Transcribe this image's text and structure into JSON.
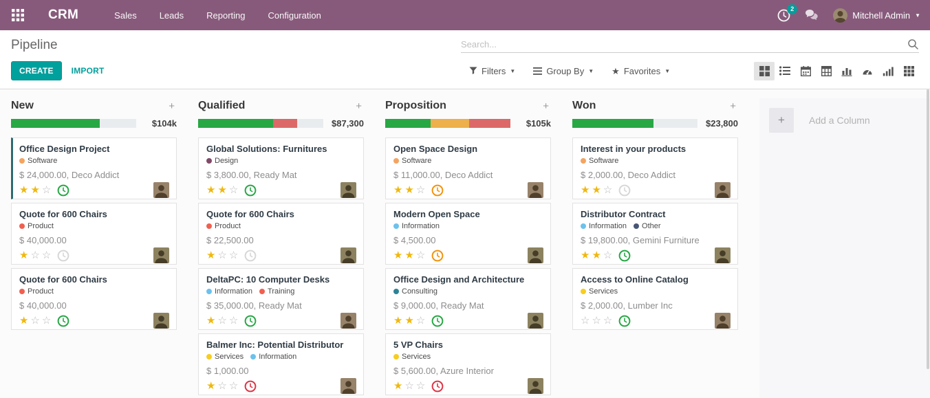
{
  "colors": {
    "topbar_bg": "#875A7B",
    "accent_teal": "#00A09D",
    "bar_green": "#28a745",
    "bar_red": "#dc6967",
    "bar_amber": "#edb04c",
    "bar_track": "#e9ecef",
    "star_gold": "#efb810",
    "clock_green": "#28a745",
    "clock_orange": "#f1930d",
    "clock_red": "#dc3545",
    "clock_gray": "#d7d7d7",
    "card_accent": "#2e6b70"
  },
  "topbar": {
    "brand": "CRM",
    "menus": [
      "Sales",
      "Leads",
      "Reporting",
      "Configuration"
    ],
    "activity_badge": "2",
    "user_name": "Mitchell Admin"
  },
  "control_panel": {
    "title": "Pipeline",
    "create_label": "CREATE",
    "import_label": "IMPORT",
    "search_placeholder": "Search...",
    "filters_label": "Filters",
    "group_by_label": "Group By",
    "favorites_label": "Favorites",
    "view_switcher": [
      {
        "icon": "kanban-view-icon",
        "active": true
      },
      {
        "icon": "list-view-icon",
        "active": false
      },
      {
        "icon": "calendar-view-icon",
        "active": false
      },
      {
        "icon": "pivot-view-icon",
        "active": false
      },
      {
        "icon": "graph-view-icon",
        "active": false
      },
      {
        "icon": "dashboard-view-icon",
        "active": false
      },
      {
        "icon": "cohort-view-icon",
        "active": false
      },
      {
        "icon": "activity-view-icon",
        "active": false
      }
    ]
  },
  "kanban": {
    "add_column_label": "Add a Column",
    "columns": [
      {
        "name": "New",
        "total": "$104k",
        "bar": [
          {
            "kind": "green",
            "pct": 71
          },
          {
            "kind": "track",
            "pct": 29
          }
        ],
        "cards": [
          {
            "title": "Office Design Project",
            "tags": [
              {
                "label": "Software",
                "color": "#F4A460"
              }
            ],
            "subtitle": "$ 24,000.00, Deco Addict",
            "stars": 2,
            "clock": "green",
            "accent": true,
            "avatar": "m1"
          },
          {
            "title": "Quote for 600 Chairs",
            "tags": [
              {
                "label": "Product",
                "color": "#F06050"
              }
            ],
            "subtitle": "$ 40,000.00",
            "stars": 1,
            "clock": "gray",
            "accent": false,
            "avatar": "m2"
          },
          {
            "title": "Quote for 600 Chairs",
            "tags": [
              {
                "label": "Product",
                "color": "#F06050"
              }
            ],
            "subtitle": "$ 40,000.00",
            "stars": 1,
            "clock": "green",
            "accent": false,
            "avatar": "m2"
          }
        ]
      },
      {
        "name": "Qualified",
        "total": "$87,300",
        "bar": [
          {
            "kind": "green",
            "pct": 60
          },
          {
            "kind": "red",
            "pct": 19
          },
          {
            "kind": "track",
            "pct": 21
          }
        ],
        "cards": [
          {
            "title": "Global Solutions: Furnitures",
            "tags": [
              {
                "label": "Design",
                "color": "#814968"
              }
            ],
            "subtitle": "$ 3,800.00, Ready Mat",
            "stars": 2,
            "clock": "green",
            "accent": false,
            "avatar": "m2"
          },
          {
            "title": "Quote for 600 Chairs",
            "tags": [
              {
                "label": "Product",
                "color": "#F06050"
              }
            ],
            "subtitle": "$ 22,500.00",
            "stars": 1,
            "clock": "gray",
            "accent": false,
            "avatar": "m2"
          },
          {
            "title": "DeltaPC: 10 Computer Desks",
            "tags": [
              {
                "label": "Information",
                "color": "#6CC1ED"
              },
              {
                "label": "Training",
                "color": "#F06050"
              }
            ],
            "subtitle": "$ 35,000.00, Ready Mat",
            "stars": 1,
            "clock": "green",
            "accent": false,
            "avatar": "m1"
          },
          {
            "title": "Balmer Inc: Potential Distributor",
            "tags": [
              {
                "label": "Services",
                "color": "#F7CD1F"
              },
              {
                "label": "Information",
                "color": "#6CC1ED"
              }
            ],
            "subtitle": "$ 1,000.00",
            "stars": 1,
            "clock": "red",
            "accent": false,
            "avatar": "m1"
          }
        ]
      },
      {
        "name": "Proposition",
        "total": "$105k",
        "bar": [
          {
            "kind": "green",
            "pct": 36
          },
          {
            "kind": "amber",
            "pct": 31
          },
          {
            "kind": "red",
            "pct": 33
          }
        ],
        "cards": [
          {
            "title": "Open Space Design",
            "tags": [
              {
                "label": "Software",
                "color": "#F4A460"
              }
            ],
            "subtitle": "$ 11,000.00, Deco Addict",
            "stars": 2,
            "clock": "orange",
            "accent": false,
            "avatar": "m1"
          },
          {
            "title": "Modern Open Space",
            "tags": [
              {
                "label": "Information",
                "color": "#6CC1ED"
              }
            ],
            "subtitle": "$ 4,500.00",
            "stars": 2,
            "clock": "orange",
            "accent": false,
            "avatar": "m2"
          },
          {
            "title": "Office Design and Architecture",
            "tags": [
              {
                "label": "Consulting",
                "color": "#2C8397"
              }
            ],
            "subtitle": "$ 9,000.00, Ready Mat",
            "stars": 2,
            "clock": "green",
            "accent": false,
            "avatar": "m2"
          },
          {
            "title": "5 VP Chairs",
            "tags": [
              {
                "label": "Services",
                "color": "#F7CD1F"
              }
            ],
            "subtitle": "$ 5,600.00, Azure Interior",
            "stars": 1,
            "clock": "red",
            "accent": false,
            "avatar": "m2"
          }
        ]
      },
      {
        "name": "Won",
        "total": "$23,800",
        "bar": [
          {
            "kind": "green",
            "pct": 65
          },
          {
            "kind": "track",
            "pct": 35
          }
        ],
        "cards": [
          {
            "title": "Interest in your products",
            "tags": [
              {
                "label": "Software",
                "color": "#F4A460"
              }
            ],
            "subtitle": "$ 2,000.00, Deco Addict",
            "stars": 2,
            "clock": "gray",
            "accent": false,
            "avatar": "m1"
          },
          {
            "title": "Distributor Contract",
            "tags": [
              {
                "label": "Information",
                "color": "#6CC1ED"
              },
              {
                "label": "Other",
                "color": "#475577"
              }
            ],
            "subtitle": "$ 19,800.00, Gemini Furniture",
            "stars": 2,
            "clock": "green",
            "accent": false,
            "avatar": "m2"
          },
          {
            "title": "Access to Online Catalog",
            "tags": [
              {
                "label": "Services",
                "color": "#F7CD1F"
              }
            ],
            "subtitle": "$ 2,000.00, Lumber Inc",
            "stars": 0,
            "clock": "green",
            "accent": false,
            "avatar": "m1"
          }
        ]
      }
    ]
  }
}
